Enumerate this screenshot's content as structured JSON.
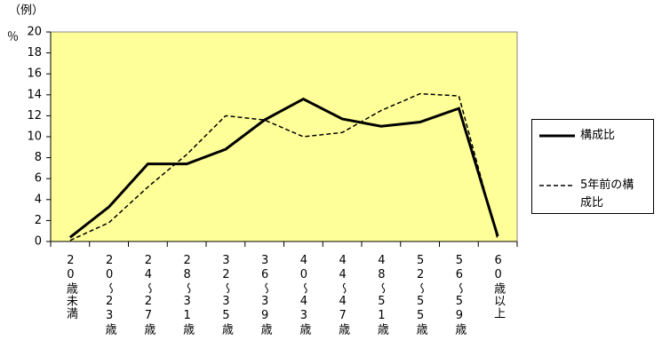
{
  "chart_data": {
    "type": "line",
    "unit_label": "（例）",
    "y_label": "％",
    "categories": [
      "20歳未満",
      "20～23歳",
      "24～27歳",
      "28～31歳",
      "32～35歳",
      "36～39歳",
      "40～43歳",
      "44～47歳",
      "48～51歳",
      "52～55歳",
      "56～59歳",
      "60歳以上"
    ],
    "series": [
      {
        "name": "構成比",
        "color": "#000000",
        "dash": false,
        "values": [
          0.4,
          3.3,
          7.4,
          7.4,
          8.8,
          11.6,
          13.6,
          11.7,
          11.0,
          11.4,
          12.7,
          0.5
        ]
      },
      {
        "name": "5年前の構成比",
        "color": "#000000",
        "dash": true,
        "values": [
          0.1,
          1.8,
          5.2,
          8.3,
          12.0,
          11.6,
          10.0,
          10.4,
          12.5,
          14.1,
          13.9,
          0.2
        ]
      }
    ],
    "ylim": [
      0,
      20
    ],
    "yticks": [
      0,
      2,
      4,
      6,
      8,
      10,
      12,
      14,
      16,
      18,
      20
    ],
    "background": "#ffff99",
    "legend": "right"
  }
}
